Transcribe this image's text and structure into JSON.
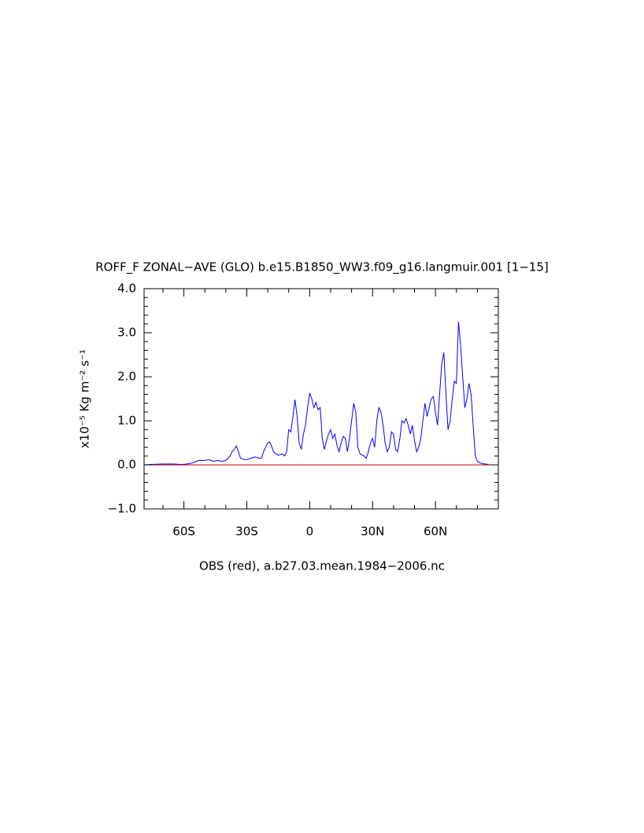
{
  "chart_data": {
    "type": "line",
    "title": "ROFF_F ZONAL−AVE (GLO) b.e15.B1850_WW3.f09_g16.langmuir.001 [1−15]",
    "y_axis_label": "x10⁻⁵ Kg m⁻² s⁻¹",
    "subtitle": "OBS (red), a.b27.03.mean.1984−2006.nc",
    "xlim": [
      -79,
      90
    ],
    "ylim": [
      -1,
      4
    ],
    "xticks": [
      {
        "value": -60,
        "label": "60S"
      },
      {
        "value": -30,
        "label": "30S"
      },
      0,
      {
        "value": 30,
        "label": "30N"
      },
      {
        "value": 60,
        "label": "60N"
      }
    ],
    "xminorticks": [
      -70,
      -50,
      -40,
      -20,
      -10,
      10,
      20,
      40,
      50,
      70,
      80
    ],
    "yticks": [
      {
        "value": -1,
        "label": "−1.0"
      },
      {
        "value": 0,
        "label": "0.0"
      },
      {
        "value": 1,
        "label": "1.0"
      },
      {
        "value": 2,
        "label": "2.0"
      },
      {
        "value": 3,
        "label": "3.0"
      },
      {
        "value": 4,
        "label": "4.0"
      }
    ],
    "yminorticks": [
      -0.8,
      -0.6,
      -0.4,
      -0.2,
      0.2,
      0.4,
      0.6,
      0.8,
      1.2,
      1.4,
      1.6,
      1.8,
      2.2,
      2.4,
      2.6,
      2.8,
      3.2,
      3.4,
      3.6,
      3.8
    ],
    "series": [
      {
        "color": "#0000ff",
        "x": [
          -79,
          -75,
          -70,
          -65,
          -62,
          -60,
          -57,
          -55,
          -53,
          -50,
          -48,
          -46,
          -44,
          -42,
          -40,
          -38,
          -37,
          -36,
          -35,
          -34,
          -33,
          -31,
          -30,
          -28,
          -26,
          -24,
          -23,
          -22,
          -20,
          -19,
          -18,
          -17,
          -15,
          -13,
          -12,
          -11,
          -10,
          -9,
          -8,
          -7,
          -6,
          -5,
          -4,
          -3,
          -2,
          -1,
          0,
          1,
          2,
          3,
          4,
          5,
          6,
          7,
          8,
          9,
          10,
          11,
          12,
          13,
          14,
          15,
          16,
          17,
          18,
          19,
          20,
          21,
          22,
          23,
          24,
          26,
          27,
          28,
          29,
          30,
          31,
          32,
          33,
          34,
          35,
          36,
          37,
          38,
          39,
          40,
          41,
          42,
          43,
          44,
          45,
          46,
          47,
          48,
          49,
          50,
          51,
          52,
          53,
          54,
          55,
          56,
          57,
          58,
          59,
          60,
          61,
          62,
          63,
          64,
          65,
          66,
          67,
          68,
          69,
          70,
          71,
          72,
          73,
          74,
          75,
          76,
          77,
          78,
          79,
          80,
          81,
          82,
          83,
          84,
          85,
          86,
          90
        ],
        "values": [
          0,
          0.01,
          0.02,
          0.02,
          0.01,
          0.01,
          0.03,
          0.06,
          0.1,
          0.1,
          0.12,
          0.08,
          0.1,
          0.08,
          0.1,
          0.2,
          0.3,
          0.35,
          0.43,
          0.3,
          0.15,
          0.12,
          0.12,
          0.15,
          0.18,
          0.15,
          0.15,
          0.3,
          0.5,
          0.52,
          0.4,
          0.28,
          0.22,
          0.25,
          0.2,
          0.3,
          0.8,
          0.75,
          1.1,
          1.48,
          1.1,
          0.5,
          0.35,
          0.7,
          0.9,
          1.3,
          1.63,
          1.5,
          1.3,
          1.42,
          1.25,
          1.3,
          0.6,
          0.35,
          0.55,
          0.7,
          0.8,
          0.6,
          0.7,
          0.45,
          0.3,
          0.5,
          0.65,
          0.6,
          0.3,
          0.6,
          1.0,
          1.4,
          1.2,
          0.4,
          0.25,
          0.2,
          0.15,
          0.3,
          0.5,
          0.6,
          0.4,
          1.0,
          1.3,
          1.2,
          0.9,
          0.5,
          0.3,
          0.4,
          0.75,
          0.7,
          0.35,
          0.3,
          0.6,
          1.0,
          0.95,
          1.05,
          0.9,
          0.7,
          0.9,
          0.55,
          0.3,
          0.4,
          0.6,
          1.0,
          1.4,
          1.1,
          1.3,
          1.5,
          1.55,
          1.2,
          0.9,
          1.6,
          2.3,
          2.55,
          1.6,
          0.8,
          1.0,
          1.5,
          1.9,
          1.85,
          3.25,
          2.7,
          2.0,
          1.3,
          1.5,
          1.85,
          1.6,
          0.9,
          0.2,
          0.08,
          0.05,
          0.03,
          0.02,
          0.02,
          0.01,
          0,
          0
        ]
      },
      {
        "color": "#cc0000",
        "x": [
          -79,
          90
        ],
        "values": [
          0,
          0
        ]
      }
    ]
  }
}
